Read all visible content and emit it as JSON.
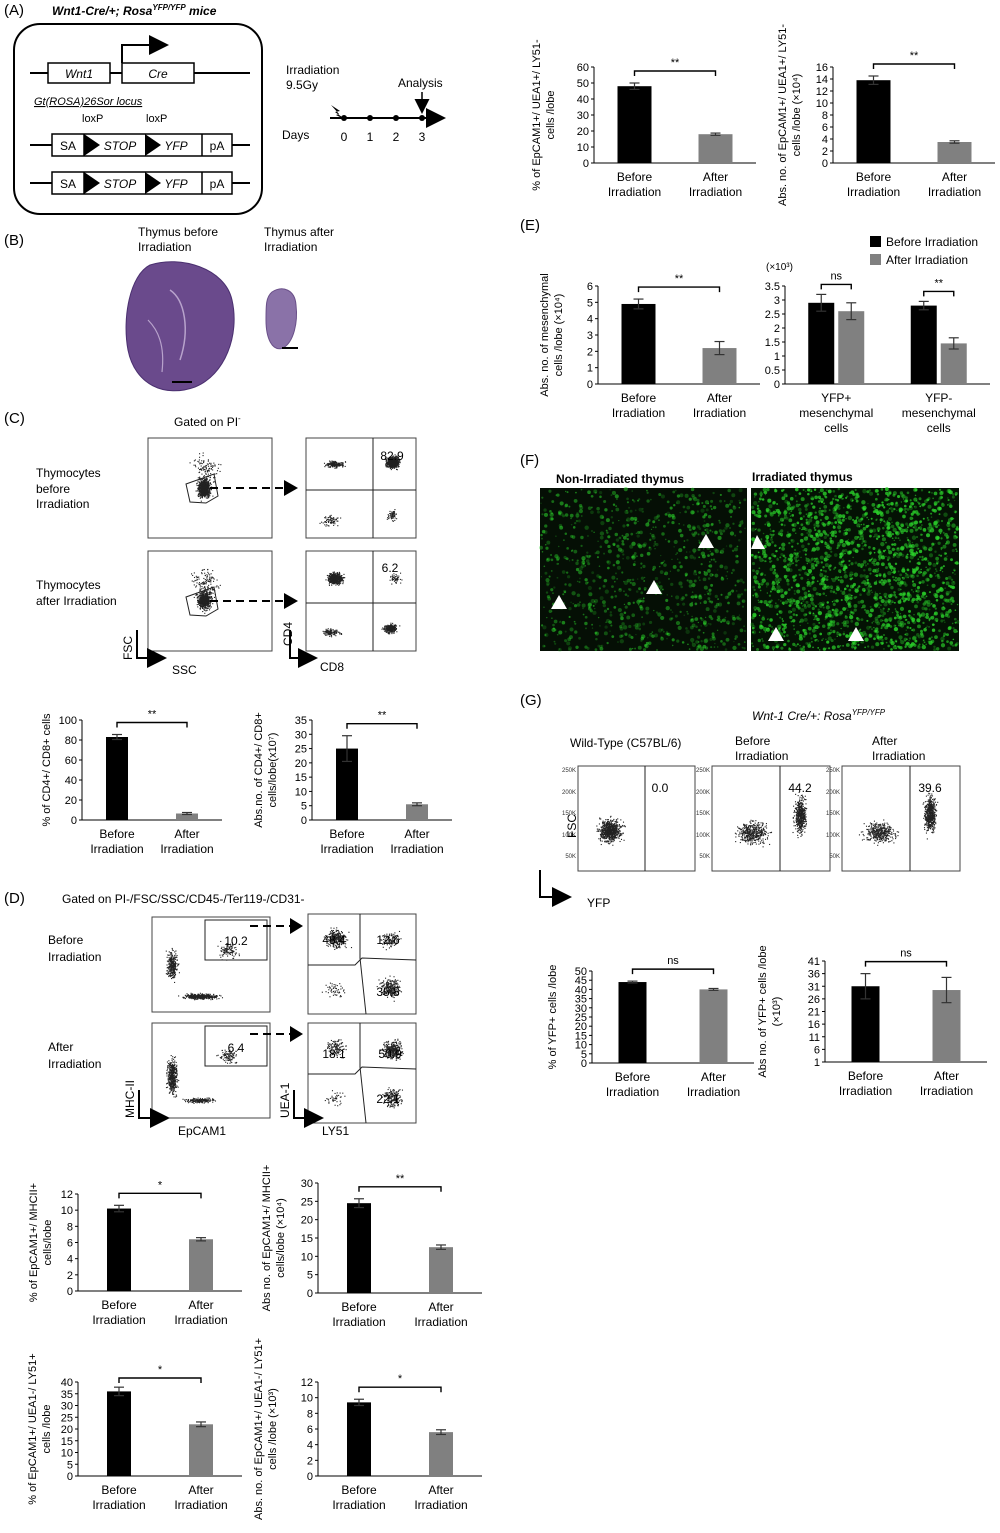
{
  "figure": {
    "panel_letters": [
      "(A)",
      "(B)",
      "(C)",
      "(D)",
      "(E)",
      "(F)",
      "(G)"
    ],
    "panel_a": {
      "mouse_line": "Wnt1-Cre/+; Rosa",
      "mouse_line_sup": "YFP/YFP",
      "mouse_line_end": " mice",
      "gene1": "Wnt1",
      "gene2": "Cre",
      "locus": "Gt(ROSA)26Sor locus",
      "loxp1": "loxP",
      "loxp2": "loxP",
      "box_sa": "SA",
      "box_stop": "STOP",
      "box_yfp": "YFP",
      "box_pa": "pA",
      "irradiation": "Irradiation",
      "dose": "9.5Gy",
      "analysis": "Analysis",
      "days_label": "Days",
      "days": [
        "0",
        "1",
        "2",
        "3"
      ]
    },
    "panel_b": {
      "before_line1": "Thymus before",
      "before_line2": "Irradiation",
      "after_line1": "Thymus after",
      "after_line2": "Irradiation"
    },
    "panel_c": {
      "gate_title": "Gated on PI",
      "row1_line1": "Thymocytes",
      "row1_line2": "before",
      "row1_line3": "Irradiation",
      "row2_line1": "Thymocytes",
      "row2_line2": "after Irradiation",
      "axis_fsc": "FSC",
      "axis_ssc": "SSC",
      "axis_cd4": "CD4",
      "axis_cd8": "CD8",
      "q_before": "82.9",
      "q_after": "6.2"
    },
    "panel_d": {
      "gate_title": "Gated on PI-/FSC/SSC/CD45-/Ter119-/CD31-",
      "row1_line1": "Before",
      "row1_line2": "Irradiation",
      "row2_line1": "After",
      "row2_line2": "Irradiation",
      "axis_mhc": "MHC-II",
      "axis_epcam": "EpCAM1",
      "axis_uea": "UEA-1",
      "axis_ly51": "LY51",
      "gate_before": "10.2",
      "gate_after": "6.4",
      "q_before": [
        "48.4",
        "12.6",
        "35.8"
      ],
      "q_after": [
        "18.1",
        "50.9",
        "22.1"
      ]
    },
    "panel_e": {
      "legend_before": "Before Irradiation",
      "legend_after": "After Irradiation",
      "scale_label": "(×10³)"
    },
    "panel_f": {
      "left_title": "Non-Irradiated thymus",
      "right_title": "Irradiated thymus"
    },
    "panel_g": {
      "wt_label": "Wild-Type (C57BL/6)",
      "tg_label": "Wnt-1 Cre/+: Rosa",
      "tg_sup": "YFP/YFP",
      "before_line1": "Before",
      "before_line2": "Irradiation",
      "after_line1": "After",
      "after_line2": "Irradiation",
      "axis_fsc": "FSC",
      "axis_yfp": "YFP",
      "gates": [
        "0.0",
        "44.2",
        "39.6"
      ],
      "flow_ticks": [
        "250K",
        "200K",
        "150K",
        "100K",
        "50K"
      ]
    },
    "colors": {
      "before": "#000000",
      "after": "#808080",
      "fluor": "#2bd42b"
    }
  },
  "chart_data": [
    {
      "id": "c1",
      "type": "bar",
      "categories": [
        "Before\nIrradiation",
        "After\nIrradiation"
      ],
      "values": [
        83,
        6.5
      ],
      "errors": [
        2.5,
        1
      ],
      "ylim": [
        0,
        100
      ],
      "ticks": [
        0,
        20,
        40,
        60,
        80,
        100
      ],
      "ylabel": [
        "% of CD4+/ CD8+ cells"
      ],
      "sig": "**"
    },
    {
      "id": "c2",
      "type": "bar",
      "categories": [
        "Before\nIrradiation",
        "After\nIrradiation"
      ],
      "values": [
        25,
        5.5
      ],
      "errors": [
        4.5,
        0.5
      ],
      "ylim": [
        0,
        35
      ],
      "ticks": [
        0,
        5,
        10,
        15,
        20,
        25,
        30,
        35
      ],
      "ylabel": [
        "Abs.no. of  CD4+/ CD8+",
        "cells/lobe(x10⁷)"
      ],
      "sig": "**"
    },
    {
      "id": "c3",
      "type": "bar",
      "categories": [
        "Before\nIrradiation",
        "After\nIrradiation"
      ],
      "values": [
        48,
        18
      ],
      "errors": [
        2,
        0.7
      ],
      "ylim": [
        0,
        60
      ],
      "ticks": [
        0,
        10,
        20,
        30,
        40,
        50,
        60
      ],
      "ylabel": [
        "% of EpCAM1+/ UEA1+/ LY51-",
        "cells /lobe"
      ],
      "sig": "**"
    },
    {
      "id": "c4",
      "type": "bar",
      "categories": [
        "Before\nIrradiation",
        "After\nIrradiation"
      ],
      "values": [
        13.8,
        3.5
      ],
      "errors": [
        0.7,
        0.2
      ],
      "ylim": [
        0,
        16
      ],
      "ticks": [
        0,
        2,
        4,
        6,
        8,
        10,
        12,
        14,
        16
      ],
      "ylabel": [
        "Abs. no. of EpCAM1+/ UEA1+/ LY51-",
        "cells /lobe (×10⁴)"
      ],
      "sig": "**"
    },
    {
      "id": "c5",
      "type": "bar",
      "categories": [
        "Before\nIrradiation",
        "After\nIrradiation"
      ],
      "values": [
        4.9,
        2.2
      ],
      "errors": [
        0.3,
        0.4
      ],
      "ylim": [
        0,
        6
      ],
      "ticks": [
        0,
        1,
        2,
        3,
        4,
        5,
        6
      ],
      "ylabel": [
        "Abs. no. of mesenchymal",
        "cells /lobe (×10⁴)"
      ],
      "sig": "**"
    },
    {
      "id": "c6",
      "type": "bar",
      "categories": [
        "YFP+\nmesenchymal\ncells",
        "YFP-\nmesenchymal\ncells"
      ],
      "series": [
        {
          "name": "Before Irradiation",
          "values": [
            2.9,
            2.8
          ],
          "errors": [
            0.3,
            0.15
          ]
        },
        {
          "name": "After Irradiation",
          "values": [
            2.6,
            1.45
          ],
          "errors": [
            0.3,
            0.2
          ]
        }
      ],
      "ylim": [
        0,
        3.5
      ],
      "ticks": [
        0,
        0.5,
        1,
        1.5,
        2,
        2.5,
        3,
        3.5
      ],
      "sig": [
        "ns",
        "**"
      ]
    },
    {
      "id": "c7",
      "type": "bar",
      "categories": [
        "Before\nIrradiation",
        "After\nIrradiation"
      ],
      "values": [
        10.2,
        6.4
      ],
      "errors": [
        0.4,
        0.2
      ],
      "ylim": [
        0,
        12
      ],
      "ticks": [
        0,
        2,
        4,
        6,
        8,
        10,
        12
      ],
      "ylabel": [
        "% of EpCAM1+/ MHCII+",
        "cells/lobe"
      ],
      "sig": "*"
    },
    {
      "id": "c8",
      "type": "bar",
      "categories": [
        "Before\nIrradiation",
        "After\nIrradiation"
      ],
      "values": [
        24.5,
        12.5
      ],
      "errors": [
        1.2,
        0.6
      ],
      "ylim": [
        0,
        30
      ],
      "ticks": [
        0,
        5,
        10,
        15,
        20,
        25,
        30
      ],
      "ylabel": [
        "Abs no. of EpCAM1+/ MHCII+",
        "cells/lobe (×10⁴)"
      ],
      "sig": "**"
    },
    {
      "id": "c9",
      "type": "bar",
      "categories": [
        "Before\nIrradiation",
        "After\nIrradiation"
      ],
      "values": [
        36,
        22
      ],
      "errors": [
        1.8,
        1
      ],
      "ylim": [
        0,
        40
      ],
      "ticks": [
        0,
        5,
        10,
        15,
        20,
        25,
        30,
        35,
        40
      ],
      "ylabel": [
        "% of EpCAM1+/ UEA1-/ LY51+",
        "cells /lobe"
      ],
      "sig": "*"
    },
    {
      "id": "c10",
      "type": "bar",
      "categories": [
        "Before\nIrradiation",
        "After\nIrradiation"
      ],
      "values": [
        9.4,
        5.6
      ],
      "errors": [
        0.4,
        0.3
      ],
      "ylim": [
        0,
        12
      ],
      "ticks": [
        0,
        2,
        4,
        6,
        8,
        10,
        12
      ],
      "ylabel": [
        "Abs. no. of EpCAM1+/ UEA1-/ LY51+",
        "cells /lobe (×10³)"
      ],
      "sig": "*"
    },
    {
      "id": "c11",
      "type": "bar",
      "categories": [
        "Before\nIrradiation",
        "After\nIrradiation"
      ],
      "values": [
        44,
        40
      ],
      "errors": [
        0.5,
        0.5
      ],
      "ylim": [
        0,
        50
      ],
      "ticks": [
        0,
        5,
        10,
        15,
        20,
        25,
        30,
        35,
        40,
        45,
        50
      ],
      "ylabel": [
        "% of YFP+ cells /lobe"
      ],
      "sig": "ns"
    },
    {
      "id": "c12",
      "type": "bar",
      "categories": [
        "Before\nIrradiation",
        "After\nIrradiation"
      ],
      "values": [
        31,
        29.5
      ],
      "errors": [
        5,
        5
      ],
      "ylim": [
        1,
        41
      ],
      "ticks": [
        1,
        6,
        11,
        16,
        21,
        26,
        31,
        36,
        41
      ],
      "ylabel": [
        "Abs no. of YFP+ cells /lobe",
        "(×10³)"
      ],
      "sig": "ns"
    }
  ]
}
